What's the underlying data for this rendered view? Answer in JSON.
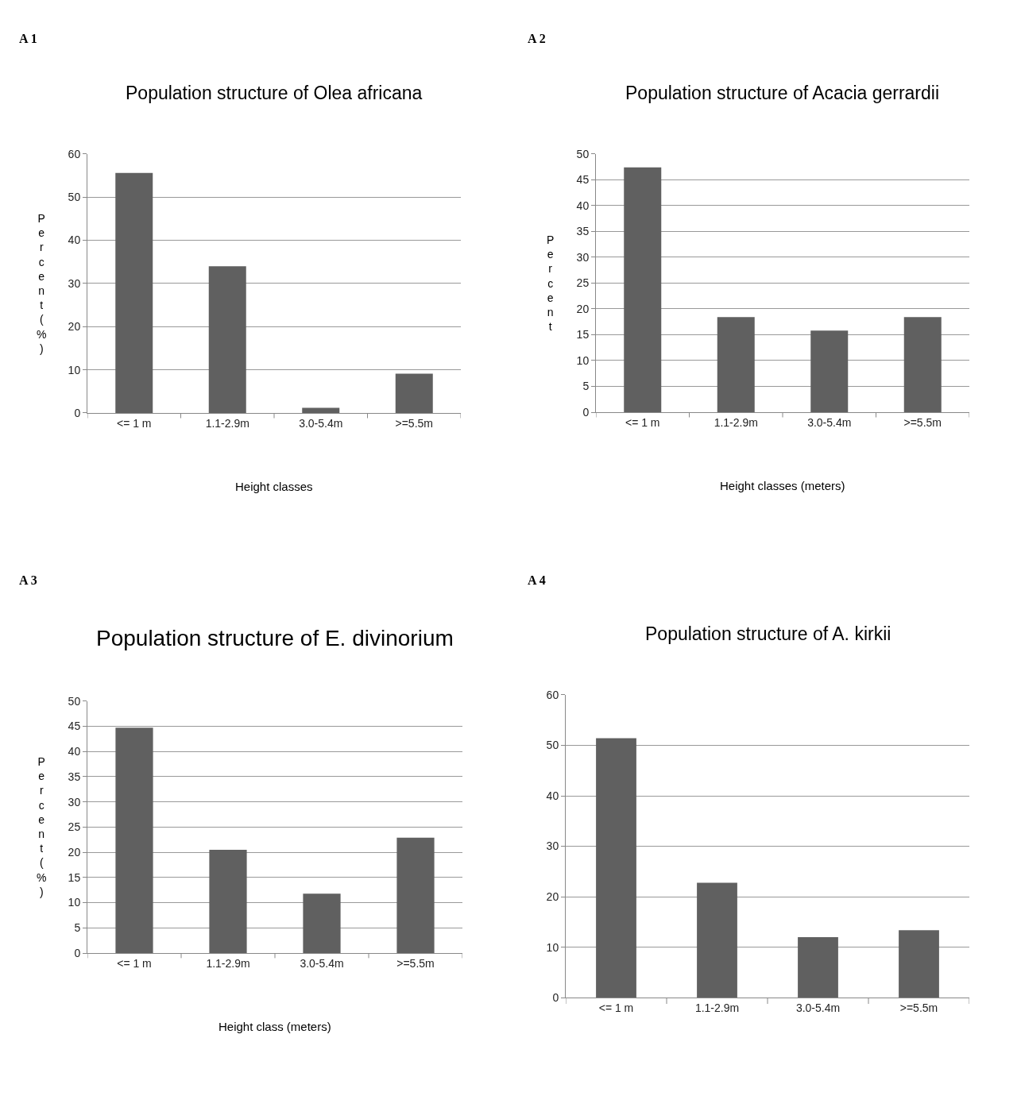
{
  "chart_data": [
    {
      "type": "bar",
      "title": "Population structure of Olea africana",
      "xlabel": "Height classes",
      "ylabel": "Percent (%)",
      "categories": [
        "<= 1 m",
        "1.1-2.9m",
        "3.0-5.4m",
        ">=5.5m"
      ],
      "values": [
        55.6,
        34.0,
        1.2,
        9.1
      ],
      "color": "#606060",
      "ylim": [
        0,
        60
      ],
      "yticks": [
        0,
        10,
        20,
        30,
        40,
        50,
        60
      ],
      "grid": "y",
      "annotations": [
        "A 1"
      ]
    },
    {
      "type": "bar",
      "title": "Population structure of Acacia gerrardii",
      "xlabel": "Height classes (meters)",
      "ylabel": "Percent",
      "categories": [
        "<= 1 m",
        "1.1-2.9m",
        "3.0-5.4m",
        ">=5.5m"
      ],
      "values": [
        47.4,
        18.4,
        15.8,
        18.4
      ],
      "color": "#606060",
      "ylim": [
        0,
        50
      ],
      "yticks": [
        0,
        5,
        10,
        15,
        20,
        25,
        30,
        35,
        40,
        45,
        50
      ],
      "grid": "y",
      "annotations": [
        "A 2"
      ]
    },
    {
      "type": "bar",
      "title": "Population structure of E. divinorium",
      "xlabel": "Height class (meters)",
      "ylabel": "Percent (%)",
      "categories": [
        "<= 1 m",
        "1.1-2.9m",
        "3.0-5.4m",
        ">=5.5m"
      ],
      "values": [
        44.7,
        20.5,
        11.8,
        22.9
      ],
      "color": "#606060",
      "ylim": [
        0,
        50
      ],
      "yticks": [
        0,
        5,
        10,
        15,
        20,
        25,
        30,
        35,
        40,
        45,
        50
      ],
      "grid": "y",
      "annotations": [
        "A 3"
      ]
    },
    {
      "type": "bar",
      "title": "Population structure of A. kirkii",
      "categories": [
        "<= 1 m",
        "1.1-2.9m",
        "3.0-5.4m",
        ">=5.5m"
      ],
      "values": [
        51.4,
        22.8,
        12.0,
        13.4
      ],
      "color": "#606060",
      "ylim": [
        0,
        60
      ],
      "yticks": [
        0,
        10,
        20,
        30,
        40,
        50,
        60
      ],
      "grid": "y",
      "annotations": [
        "A 4"
      ]
    }
  ]
}
